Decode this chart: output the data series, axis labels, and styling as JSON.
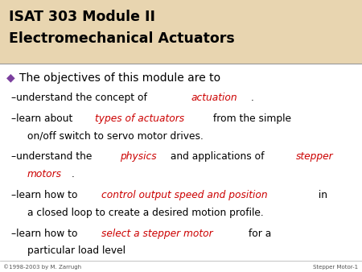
{
  "bg_color": "#ffffff",
  "header_bg": "#e8d5b0",
  "header_text_line1": "ISAT 303 Module II",
  "header_text_line2": "Electromechanical Actuators",
  "header_color": "#000000",
  "bullet_color": "#7b3f9e",
  "bullet_char": "◆",
  "bullet_text": "The objectives of this module are to",
  "black": "#000000",
  "red": "#cc0000",
  "footer_left": "©1998-2003 by M. Zarrugh",
  "footer_right": "Stepper Motor-1",
  "footer_color": "#555555"
}
